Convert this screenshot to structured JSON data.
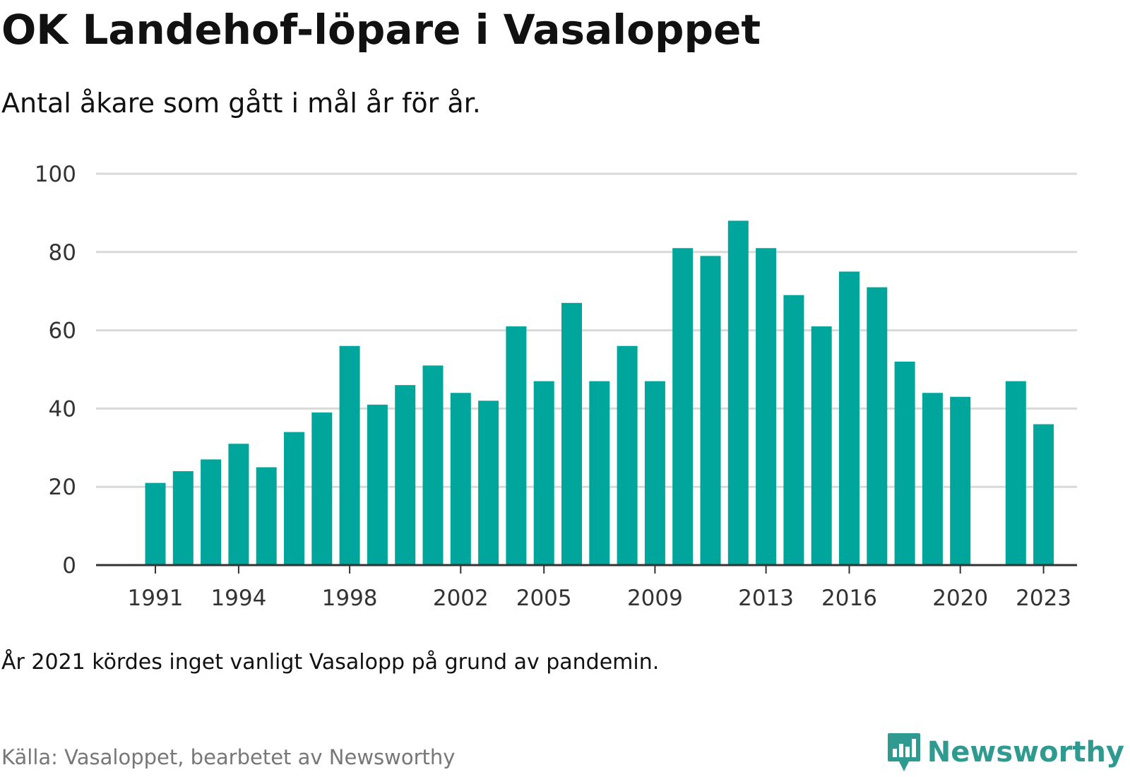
{
  "title": "OK Landehof-löpare i Vasaloppet",
  "subtitle": "Antal åkare som gått i mål år för år.",
  "note": "År 2021 kördes inget vanligt Vasalopp på grund av pandemin.",
  "source": "Källa: Vasaloppet, bearbetet av Newsworthy",
  "brand": {
    "name": "Newsworthy",
    "icon": "bar-chart-icon",
    "color": "#2f9a90"
  },
  "colors": {
    "bar": "#00a59b",
    "grid": "#d9d9d9",
    "axis": "#333333"
  },
  "chart_data": {
    "type": "bar",
    "title": "OK Landehof-löpare i Vasaloppet",
    "subtitle": "Antal åkare som gått i mål år för år.",
    "xlabel": "",
    "ylabel": "",
    "ylim": [
      0,
      100
    ],
    "yticks": [
      0,
      20,
      40,
      60,
      80,
      100
    ],
    "xtick_labels": [
      "1991",
      "1994",
      "1998",
      "2002",
      "2005",
      "2009",
      "2013",
      "2016",
      "2020",
      "2023"
    ],
    "grid": true,
    "legend": "none",
    "categories": [
      1991,
      1992,
      1993,
      1994,
      1995,
      1996,
      1997,
      1998,
      1999,
      2000,
      2001,
      2002,
      2003,
      2004,
      2005,
      2006,
      2007,
      2008,
      2009,
      2010,
      2011,
      2012,
      2013,
      2014,
      2015,
      2016,
      2017,
      2018,
      2019,
      2020,
      2021,
      2022,
      2023
    ],
    "values": [
      21,
      24,
      27,
      31,
      25,
      34,
      39,
      56,
      41,
      46,
      51,
      44,
      42,
      61,
      47,
      67,
      47,
      56,
      47,
      81,
      79,
      88,
      81,
      69,
      61,
      75,
      71,
      52,
      44,
      43,
      null,
      47,
      36
    ]
  }
}
